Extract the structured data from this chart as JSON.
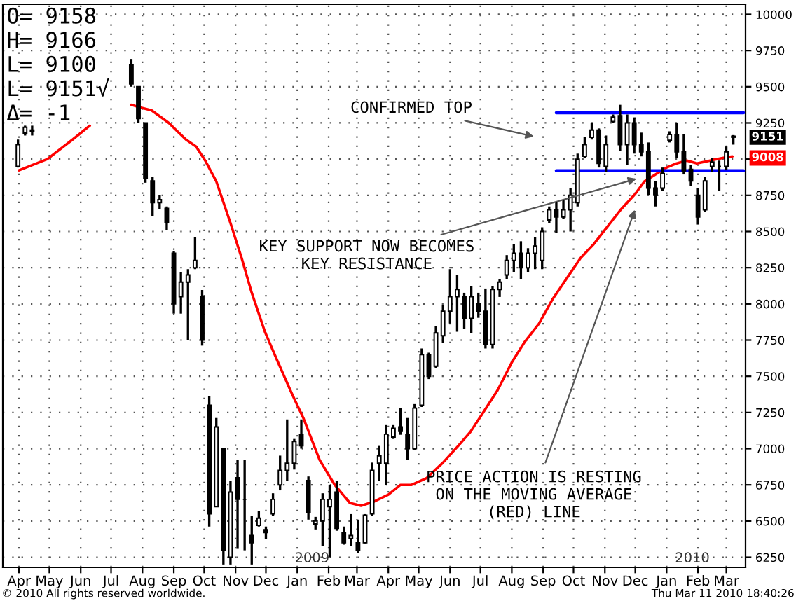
{
  "chart_data": {
    "type": "candlestick",
    "color": "#000000",
    "x": [
      "2008-03-31",
      "2008-04-07",
      "2008-04-14",
      "2008-07-21",
      "2008-07-28",
      "2008-08-04",
      "2008-08-11",
      "2008-08-18",
      "2008-08-25",
      "2008-09-01",
      "2008-09-08",
      "2008-09-15",
      "2008-09-22",
      "2008-09-29",
      "2008-10-06",
      "2008-10-13",
      "2008-10-20",
      "2008-10-27",
      "2008-11-03",
      "2008-11-10",
      "2008-11-17",
      "2008-11-24",
      "2008-12-01",
      "2008-12-08",
      "2008-12-15",
      "2008-12-22",
      "2008-12-29",
      "2009-01-05",
      "2009-01-12",
      "2009-01-19",
      "2009-01-26",
      "2009-02-02",
      "2009-02-09",
      "2009-02-16",
      "2009-02-23",
      "2009-03-02",
      "2009-03-09",
      "2009-03-16",
      "2009-03-23",
      "2009-03-30",
      "2009-04-06",
      "2009-04-13",
      "2009-04-20",
      "2009-04-27",
      "2009-05-04",
      "2009-05-11",
      "2009-05-18",
      "2009-05-25",
      "2009-06-01",
      "2009-06-08",
      "2009-06-15",
      "2009-06-22",
      "2009-06-29",
      "2009-07-06",
      "2009-07-13",
      "2009-07-20",
      "2009-07-27",
      "2009-08-03",
      "2009-08-10",
      "2009-08-17",
      "2009-08-24",
      "2009-08-31",
      "2009-09-07",
      "2009-09-14",
      "2009-09-21",
      "2009-09-28",
      "2009-10-05",
      "2009-10-12",
      "2009-10-19",
      "2009-10-26",
      "2009-11-02",
      "2009-11-09",
      "2009-11-16",
      "2009-11-23",
      "2009-11-30",
      "2009-12-07",
      "2009-12-14",
      "2009-12-21",
      "2009-12-28",
      "2010-01-04",
      "2010-01-11",
      "2010-01-18",
      "2010-01-25",
      "2010-02-01",
      "2010-02-08",
      "2010-02-15",
      "2010-02-22",
      "2010-03-01",
      "2010-03-08"
    ],
    "ohlc": [
      [
        8950,
        9135,
        8942,
        9100
      ],
      [
        9180,
        9231,
        9163,
        9220
      ],
      [
        9200,
        9231,
        9163,
        9190
      ],
      [
        9650,
        9692,
        9500,
        9520
      ],
      [
        9500,
        9500,
        9250,
        9280
      ],
      [
        9250,
        9250,
        8837,
        8870
      ],
      [
        8850,
        8875,
        8606,
        8700
      ],
      [
        8700,
        8750,
        8654,
        8720
      ],
      [
        8660,
        8673,
        8510,
        8560
      ],
      [
        8350,
        8365,
        7933,
        8000
      ],
      [
        8050,
        8221,
        7933,
        8150
      ],
      [
        8150,
        8240,
        7750,
        8200
      ],
      [
        8250,
        8462,
        8240,
        8300
      ],
      [
        8050,
        8096,
        7712,
        7750
      ],
      [
        7300,
        7365,
        6462,
        6550
      ],
      [
        6600,
        7212,
        6596,
        7150
      ],
      [
        7000,
        7000,
        6200,
        6300
      ],
      [
        6250,
        6779,
        6200,
        6700
      ],
      [
        6800,
        6923,
        6308,
        6650
      ],
      [
        6650,
        6923,
        6298,
        6650
      ],
      [
        6400,
        6538,
        6200,
        6350
      ],
      [
        6470,
        6567,
        6462,
        6520
      ],
      [
        6440,
        6462,
        6375,
        6420
      ],
      [
        6550,
        6692,
        6538,
        6650
      ],
      [
        6750,
        6952,
        6712,
        6850
      ],
      [
        6850,
        7202,
        6779,
        6900
      ],
      [
        6900,
        7067,
        6856,
        7050
      ],
      [
        7100,
        7202,
        7000,
        7020
      ],
      [
        6780,
        6808,
        6510,
        6560
      ],
      [
        6480,
        6529,
        6442,
        6500
      ],
      [
        6500,
        6692,
        6327,
        6650
      ],
      [
        6600,
        6750,
        6250,
        6650
      ],
      [
        6700,
        6779,
        6433,
        6450
      ],
      [
        6420,
        6462,
        6337,
        6350
      ],
      [
        6380,
        6548,
        6327,
        6400
      ],
      [
        6350,
        6510,
        6279,
        6300
      ],
      [
        6350,
        6548,
        6346,
        6540
      ],
      [
        6550,
        6904,
        6538,
        6850
      ],
      [
        6900,
        7019,
        6779,
        6950
      ],
      [
        6900,
        7163,
        6750,
        7100
      ],
      [
        7080,
        7163,
        7067,
        7140
      ],
      [
        7150,
        7279,
        7096,
        7120
      ],
      [
        7100,
        7212,
        6923,
        7000
      ],
      [
        7000,
        7308,
        6990,
        7280
      ],
      [
        7300,
        7692,
        7288,
        7650
      ],
      [
        7650,
        7663,
        7481,
        7500
      ],
      [
        7570,
        7846,
        7558,
        7800
      ],
      [
        7780,
        7990,
        7731,
        7950
      ],
      [
        7950,
        8240,
        7865,
        8050
      ],
      [
        8050,
        8202,
        7808,
        8100
      ],
      [
        8050,
        8077,
        7827,
        7900
      ],
      [
        7900,
        8125,
        7798,
        8050
      ],
      [
        8000,
        8077,
        7904,
        7950
      ],
      [
        7950,
        8106,
        7692,
        7720
      ],
      [
        7720,
        8125,
        7692,
        8100
      ],
      [
        8100,
        8173,
        8048,
        8150
      ],
      [
        8200,
        8337,
        8173,
        8300
      ],
      [
        8300,
        8413,
        8221,
        8350
      ],
      [
        8350,
        8433,
        8173,
        8250
      ],
      [
        8250,
        8385,
        8221,
        8350
      ],
      [
        8350,
        8462,
        8240,
        8400
      ],
      [
        8300,
        8529,
        8240,
        8500
      ],
      [
        8580,
        8673,
        8558,
        8650
      ],
      [
        8650,
        8702,
        8490,
        8600
      ],
      [
        8600,
        8721,
        8587,
        8650
      ],
      [
        8650,
        8798,
        8500,
        8750
      ],
      [
        8700,
        9038,
        8673,
        9000
      ],
      [
        9020,
        9154,
        9010,
        9100
      ],
      [
        9150,
        9250,
        9135,
        9200
      ],
      [
        9200,
        9212,
        8942,
        8970
      ],
      [
        8950,
        9163,
        8913,
        9100
      ],
      [
        9260,
        9308,
        9250,
        9290
      ],
      [
        9300,
        9375,
        9058,
        9100
      ],
      [
        9100,
        9308,
        8962,
        9250
      ],
      [
        9250,
        9288,
        9038,
        9100
      ],
      [
        9100,
        9183,
        9019,
        9050
      ],
      [
        9050,
        9115,
        8750,
        8800
      ],
      [
        8800,
        8846,
        8673,
        8750
      ],
      [
        8800,
        8942,
        8779,
        8900
      ],
      [
        9130,
        9192,
        9115,
        9170
      ],
      [
        9170,
        9250,
        9010,
        9050
      ],
      [
        9050,
        9173,
        8894,
        8920
      ],
      [
        8930,
        8962,
        8817,
        8850
      ],
      [
        8750,
        8798,
        8548,
        8600
      ],
      [
        8650,
        8875,
        8635,
        8850
      ],
      [
        8950,
        9010,
        8913,
        8980
      ],
      [
        8950,
        8990,
        8779,
        8950
      ],
      [
        8950,
        9087,
        8923,
        9050
      ],
      [
        9158,
        9166,
        9100,
        9151
      ]
    ],
    "series": [
      {
        "type": "line",
        "color": "#ff0000",
        "x": [
          "2008-04-01",
          "2008-04-29",
          "2008-05-24",
          "2008-06-10",
          "2008-07-01",
          "2008-07-21",
          "2008-07-30",
          "2008-08-10",
          "2008-08-27",
          "2008-09-13",
          "2008-09-23",
          "2008-10-02",
          "2008-10-13",
          "2008-10-27",
          "2008-11-07",
          "2008-11-17",
          "2008-11-30",
          "2008-12-13",
          "2008-12-27",
          "2009-01-07",
          "2009-01-23",
          "2009-02-07",
          "2009-02-22",
          "2009-03-05",
          "2009-03-18",
          "2009-04-01",
          "2009-04-13",
          "2009-04-24",
          "2009-05-09",
          "2009-05-25",
          "2009-06-09",
          "2009-06-21",
          "2009-07-02",
          "2009-07-18",
          "2009-08-01",
          "2009-08-14",
          "2009-08-28",
          "2009-09-10",
          "2009-09-24",
          "2009-10-08",
          "2009-10-21",
          "2009-11-04",
          "2009-11-17",
          "2009-12-01",
          "2009-12-10",
          "2009-12-21",
          "2010-01-01",
          "2010-01-11",
          "2010-01-21",
          "2010-01-31",
          "2010-02-13",
          "2010-02-27",
          "2010-03-07"
        ],
        "values": [
          8923,
          9000,
          9135,
          9231,
          null,
          9375,
          9356,
          9337,
          9250,
          9135,
          9087,
          8990,
          8846,
          8558,
          8317,
          8077,
          7808,
          7596,
          7375,
          7212,
          6923,
          6750,
          6625,
          6606,
          6635,
          6683,
          6750,
          6750,
          6798,
          6904,
          7019,
          7115,
          7231,
          7404,
          7596,
          7740,
          7865,
          8029,
          8173,
          8317,
          8413,
          8538,
          8654,
          8760,
          8846,
          8894,
          8942,
          8971,
          8990,
          8971,
          8990,
          9010,
          9019
        ]
      },
      {
        "type": "line",
        "color": "#0000ff",
        "x": [
          "2009-09-14",
          "2010-03-18"
        ],
        "values": [
          9320,
          9320
        ]
      },
      {
        "type": "line",
        "color": "#0000ff",
        "x": [
          "2009-09-14",
          "2010-03-18"
        ],
        "values": [
          8920,
          8920
        ]
      }
    ],
    "xlim": [
      "2008-03-16",
      "2010-03-20"
    ],
    "xticks": [
      {
        "value": "2008-04-01",
        "label": "Apr"
      },
      {
        "value": "2008-05-01",
        "label": "May"
      },
      {
        "value": "2008-06-01",
        "label": "Jun"
      },
      {
        "value": "2008-07-01",
        "label": "Jul"
      },
      {
        "value": "2008-08-01",
        "label": "Aug"
      },
      {
        "value": "2008-09-01",
        "label": "Sep"
      },
      {
        "value": "2008-10-01",
        "label": "Oct"
      },
      {
        "value": "2008-11-01",
        "label": "Nov"
      },
      {
        "value": "2008-12-01",
        "label": "Dec"
      },
      {
        "value": "2009-01-01",
        "label": "Jan"
      },
      {
        "value": "2009-02-01",
        "label": "Feb"
      },
      {
        "value": "2009-03-01",
        "label": "Mar"
      },
      {
        "value": "2009-04-01",
        "label": "Apr"
      },
      {
        "value": "2009-05-01",
        "label": "May"
      },
      {
        "value": "2009-06-01",
        "label": "Jun"
      },
      {
        "value": "2009-07-01",
        "label": "Jul"
      },
      {
        "value": "2009-08-01",
        "label": "Aug"
      },
      {
        "value": "2009-09-01",
        "label": "Sep"
      },
      {
        "value": "2009-10-01",
        "label": "Oct"
      },
      {
        "value": "2009-11-01",
        "label": "Nov"
      },
      {
        "value": "2009-12-01",
        "label": "Dec"
      },
      {
        "value": "2010-01-01",
        "label": "Jan"
      },
      {
        "value": "2010-02-01",
        "label": "Feb"
      },
      {
        "value": "2010-03-01",
        "label": "Mar"
      }
    ],
    "ylim": [
      6180,
      10070
    ],
    "yticks": [
      6250,
      6500,
      6750,
      7000,
      7250,
      7500,
      7750,
      8000,
      8250,
      8500,
      8750,
      {
        "value": 9000,
        "label": null
      },
      9250,
      9500,
      9750,
      10000
    ],
    "grid": true,
    "annotations": [
      "O= 9158",
      "H= 9166",
      "L= 9100",
      "L= 9151√",
      "Δ= -1",
      "CONFIRMED TOP",
      "KEY SUPPORT NOW BECOMES\nKEY RESISTANCE",
      "PRICE ACTION IS RESTING\nON THE MOVING AVERAGE\n(RED) LINE",
      "2009",
      "2010",
      {
        "text": "9151",
        "y": 9151
      },
      {
        "text": "9008",
        "y": 9008
      },
      "© 2010 All rights reserved worldwide.",
      "Thu Mar 11 2010 18:40:26"
    ]
  }
}
